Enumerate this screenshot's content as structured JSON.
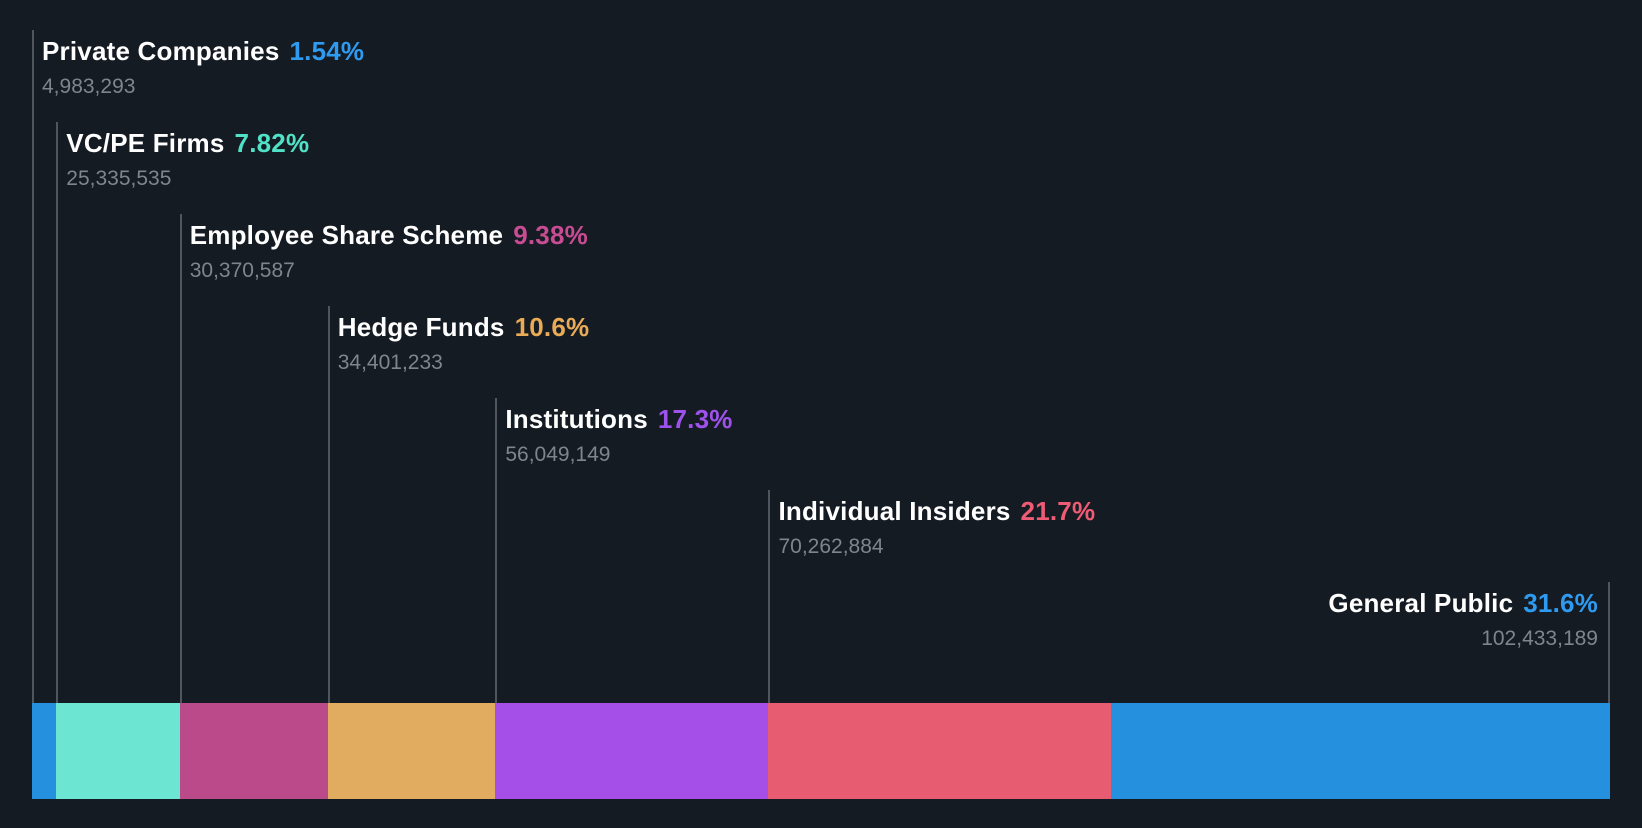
{
  "chart_data": {
    "type": "bar",
    "variant": "proportional-stacked-horizontal",
    "title": "",
    "categories": [
      "Private Companies",
      "VC/PE Firms",
      "Employee Share Scheme",
      "Hedge Funds",
      "Institutions",
      "Individual Insiders",
      "General Public"
    ],
    "values": [
      4983293,
      25335535,
      30370587,
      34401233,
      56049149,
      70262884,
      102433189
    ],
    "percent_labels": [
      "1.54%",
      "7.82%",
      "9.38%",
      "10.6%",
      "17.3%",
      "21.7%",
      "31.6%"
    ],
    "value_labels": [
      "4,983,293",
      "25,335,535",
      "30,370,587",
      "34,401,233",
      "56,049,149",
      "70,262,884",
      "102,433,189"
    ],
    "bar_colors": [
      "#2591DE",
      "#6DE5D3",
      "#BA4A89",
      "#E2AC60",
      "#A64FE8",
      "#E85C72",
      "#2591DE"
    ],
    "percent_colors": [
      "#2E9BF1",
      "#50E2C6",
      "#C74C93",
      "#E9AB56",
      "#9D52EC",
      "#EE5B74",
      "#2E9BF1"
    ],
    "legend": "none",
    "grid": "off",
    "axes": "none"
  },
  "styles": {
    "background_color": "#151B23",
    "connector_line_color": "#50565E",
    "owner_name_color": "#FFFFFF",
    "share_count_color": "#7F858D"
  }
}
